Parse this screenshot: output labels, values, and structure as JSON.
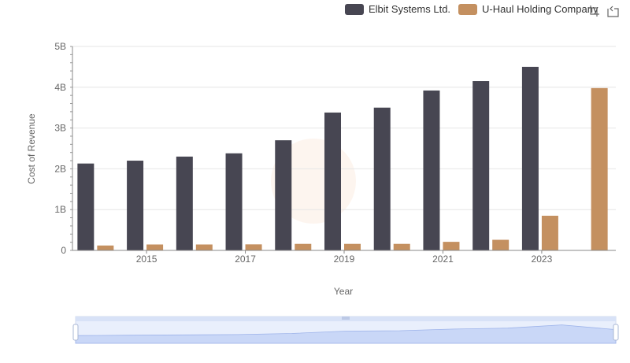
{
  "legend": [
    {
      "label": "Elbit Systems Ltd.",
      "color": "#474652"
    },
    {
      "label": "U-Haul Holding Company",
      "color": "#c49060"
    }
  ],
  "toolbox": {
    "icons": [
      "zoom-icon",
      "restore-icon"
    ]
  },
  "chart_data": {
    "type": "bar",
    "xlabel": "Year",
    "ylabel": "Cost of Revenue",
    "years": [
      2014,
      2015,
      2016,
      2017,
      2018,
      2019,
      2020,
      2021,
      2022,
      2023,
      2024
    ],
    "x_tick_labels": [
      "2015",
      "2017",
      "2019",
      "2021",
      "2023"
    ],
    "y_tick_labels": [
      "0",
      "1B",
      "2B",
      "3B",
      "4B",
      "5B"
    ],
    "ylim": [
      0,
      5000000000
    ],
    "series": [
      {
        "name": "Elbit Systems Ltd.",
        "color": "#474652",
        "values": [
          2130000000,
          2200000000,
          2300000000,
          2380000000,
          2700000000,
          3380000000,
          3500000000,
          3920000000,
          4150000000,
          4500000000,
          null
        ]
      },
      {
        "name": "U-Haul Holding Company",
        "color": "#c49060",
        "values": [
          120000000,
          145000000,
          145000000,
          148000000,
          160000000,
          160000000,
          160000000,
          210000000,
          260000000,
          850000000,
          3980000000
        ]
      }
    ],
    "grid": true,
    "legend_position": "top-right",
    "datazoom": {
      "start": 0,
      "end": 100
    }
  }
}
